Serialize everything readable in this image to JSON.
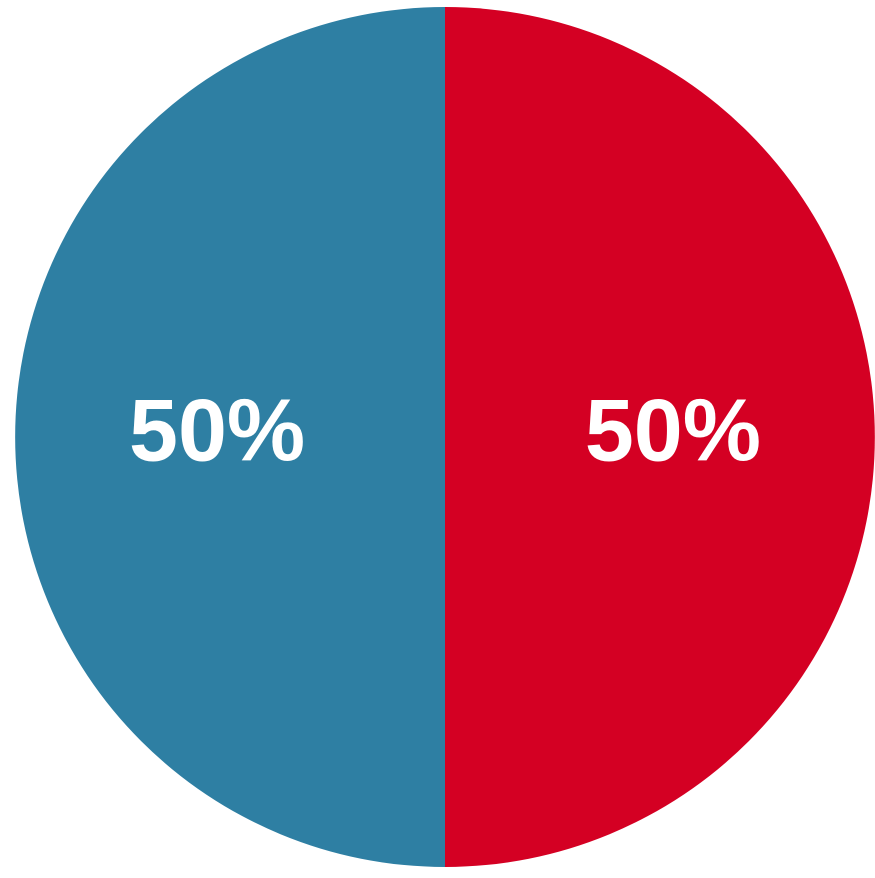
{
  "chart_data": {
    "type": "pie",
    "slices": [
      {
        "value": 50,
        "label": "50%",
        "color": "#d40023"
      },
      {
        "value": 50,
        "label": "50%",
        "color": "#2e7fa3"
      }
    ],
    "start_angle_deg": 0,
    "direction": "clockwise"
  }
}
